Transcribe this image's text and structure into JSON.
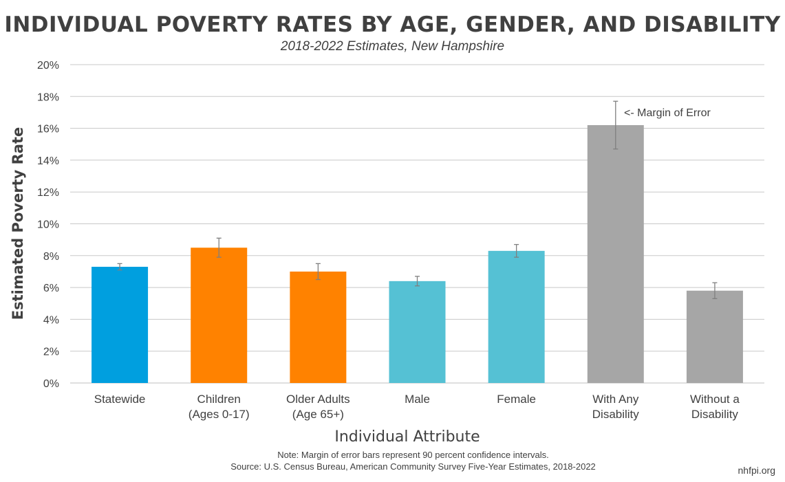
{
  "header": {
    "title": "INDIVIDUAL POVERTY RATES BY AGE, GENDER, AND DISABILITY",
    "subtitle": "2018-2022 Estimates, New Hampshire"
  },
  "footer": {
    "note": "Note: Margin of error bars represent 90 percent confidence intervals.",
    "source": "Source: U.S. Census Bureau, American Community Survey Five-Year Estimates, 2018-2022",
    "credit": "nhfpi.org"
  },
  "chart_data": {
    "type": "bar",
    "title": "INDIVIDUAL POVERTY RATES BY AGE, GENDER, AND DISABILITY",
    "subtitle": "2018-2022 Estimates, New Hampshire",
    "xlabel": "Individual Attribute",
    "ylabel": "Estimated Poverty Rate",
    "ylim": [
      0,
      20
    ],
    "yticks": [
      "0%",
      "2%",
      "4%",
      "6%",
      "8%",
      "10%",
      "12%",
      "14%",
      "16%",
      "18%",
      "20%"
    ],
    "grid": true,
    "categories": [
      [
        "Statewide"
      ],
      [
        "Children",
        "(Ages 0-17)"
      ],
      [
        "Older Adults",
        "(Age 65+)"
      ],
      [
        "Male"
      ],
      [
        "Female"
      ],
      [
        "With Any",
        "Disability"
      ],
      [
        "Without a",
        "Disability"
      ]
    ],
    "values": [
      7.3,
      8.5,
      7.0,
      6.4,
      8.3,
      16.2,
      5.8
    ],
    "error_low": [
      7.1,
      7.9,
      6.5,
      6.1,
      7.9,
      14.7,
      5.3
    ],
    "error_high": [
      7.5,
      9.1,
      7.5,
      6.7,
      8.7,
      17.7,
      6.3
    ],
    "colors": [
      "#009FDF",
      "#FF8200",
      "#FF8200",
      "#55C1D4",
      "#55C1D4",
      "#A6A6A6",
      "#A6A6A6"
    ],
    "annotation": "<- Margin of Error"
  }
}
